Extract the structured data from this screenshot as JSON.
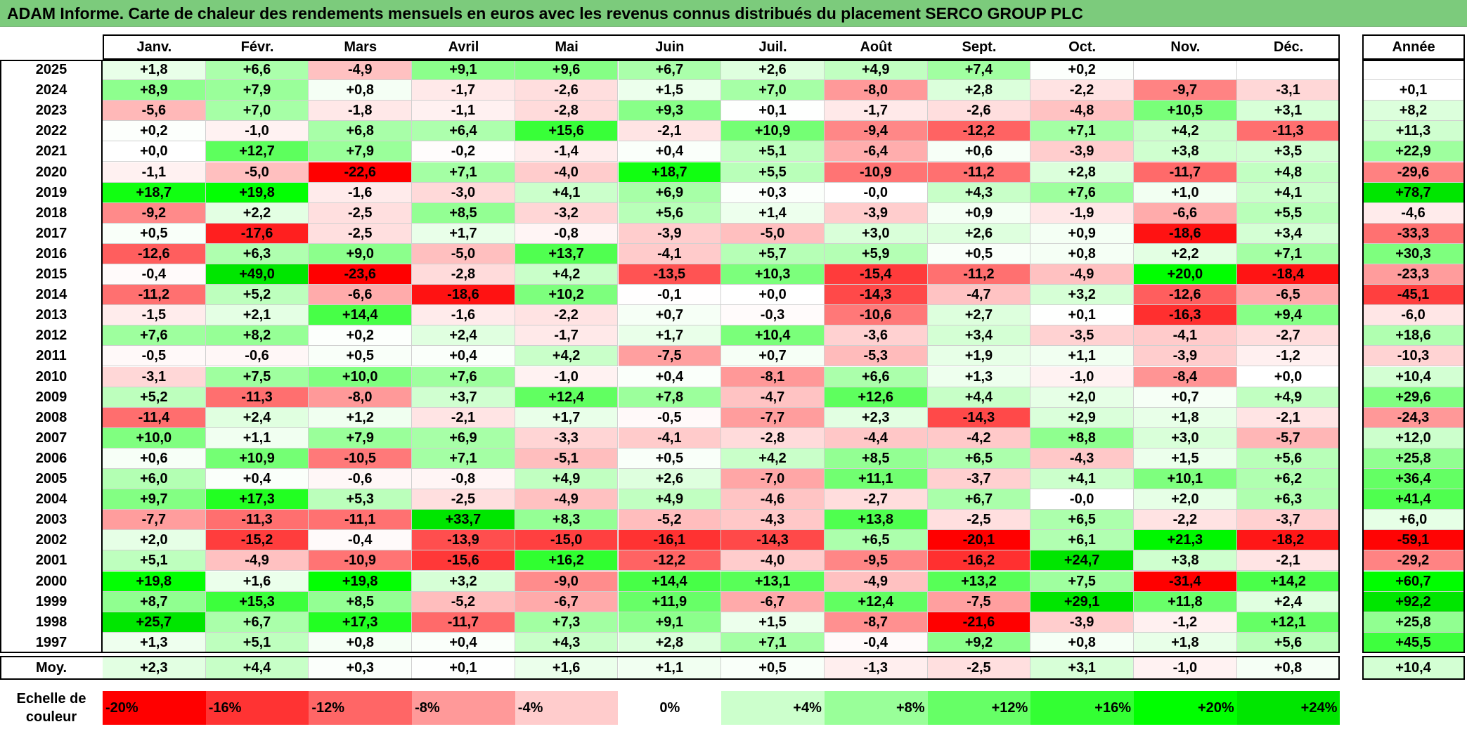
{
  "title": "ADAM Informe. Carte de chaleur des rendements mensuels en euros avec les revenus connus distribués du placement SERCO GROUP PLC",
  "chart_data": {
    "type": "heatmap",
    "title": "ADAM Informe. Carte de chaleur des rendements mensuels en euros avec les revenus connus distribués du placement SERCO GROUP PLC",
    "months": [
      "Janv.",
      "Févr.",
      "Mars",
      "Avril",
      "Mai",
      "Juin",
      "Juil.",
      "Août",
      "Sept.",
      "Oct.",
      "Nov.",
      "Déc."
    ],
    "annual_header": "Année",
    "rows": [
      {
        "year": "2025",
        "values": [
          "+1,8",
          "+6,6",
          "-4,9",
          "+9,1",
          "+9,6",
          "+6,7",
          "+2,6",
          "+4,9",
          "+7,4",
          "+0,2",
          "",
          ""
        ],
        "annual": ""
      },
      {
        "year": "2024",
        "values": [
          "+8,9",
          "+7,9",
          "+0,8",
          "-1,7",
          "-2,6",
          "+1,5",
          "+7,0",
          "-8,0",
          "+2,8",
          "-2,2",
          "-9,7",
          "-3,1"
        ],
        "annual": "+0,1"
      },
      {
        "year": "2023",
        "values": [
          "-5,6",
          "+7,0",
          "-1,8",
          "-1,1",
          "-2,8",
          "+9,3",
          "+0,1",
          "-1,7",
          "-2,6",
          "-4,8",
          "+10,5",
          "+3,1"
        ],
        "annual": "+8,2"
      },
      {
        "year": "2022",
        "values": [
          "+0,2",
          "-1,0",
          "+6,8",
          "+6,4",
          "+15,6",
          "-2,1",
          "+10,9",
          "-9,4",
          "-12,2",
          "+7,1",
          "+4,2",
          "-11,3"
        ],
        "annual": "+11,3"
      },
      {
        "year": "2021",
        "values": [
          "+0,0",
          "+12,7",
          "+7,9",
          "-0,2",
          "-1,4",
          "+0,4",
          "+5,1",
          "-6,4",
          "+0,6",
          "-3,9",
          "+3,8",
          "+3,5"
        ],
        "annual": "+22,9"
      },
      {
        "year": "2020",
        "values": [
          "-1,1",
          "-5,0",
          "-22,6",
          "+7,1",
          "-4,0",
          "+18,7",
          "+5,5",
          "-10,9",
          "-11,2",
          "+2,8",
          "-11,7",
          "+4,8"
        ],
        "annual": "-29,6"
      },
      {
        "year": "2019",
        "values": [
          "+18,7",
          "+19,8",
          "-1,6",
          "-3,0",
          "+4,1",
          "+6,9",
          "+0,3",
          "-0,0",
          "+4,3",
          "+7,6",
          "+1,0",
          "+4,1"
        ],
        "annual": "+78,7"
      },
      {
        "year": "2018",
        "values": [
          "-9,2",
          "+2,2",
          "-2,5",
          "+8,5",
          "-3,2",
          "+5,6",
          "+1,4",
          "-3,9",
          "+0,9",
          "-1,9",
          "-6,6",
          "+5,5"
        ],
        "annual": "-4,6"
      },
      {
        "year": "2017",
        "values": [
          "+0,5",
          "-17,6",
          "-2,5",
          "+1,7",
          "-0,8",
          "-3,9",
          "-5,0",
          "+3,0",
          "+2,6",
          "+0,9",
          "-18,6",
          "+3,4"
        ],
        "annual": "-33,3"
      },
      {
        "year": "2016",
        "values": [
          "-12,6",
          "+6,3",
          "+9,0",
          "-5,0",
          "+13,7",
          "-4,1",
          "+5,7",
          "+5,9",
          "+0,5",
          "+0,8",
          "+2,2",
          "+7,1"
        ],
        "annual": "+30,3"
      },
      {
        "year": "2015",
        "values": [
          "-0,4",
          "+49,0",
          "-23,6",
          "-2,8",
          "+4,2",
          "-13,5",
          "+10,3",
          "-15,4",
          "-11,2",
          "-4,9",
          "+20,0",
          "-18,4"
        ],
        "annual": "-23,3"
      },
      {
        "year": "2014",
        "values": [
          "-11,2",
          "+5,2",
          "-6,6",
          "-18,6",
          "+10,2",
          "-0,1",
          "+0,0",
          "-14,3",
          "-4,7",
          "+3,2",
          "-12,6",
          "-6,5"
        ],
        "annual": "-45,1"
      },
      {
        "year": "2013",
        "values": [
          "-1,5",
          "+2,1",
          "+14,4",
          "-1,6",
          "-2,2",
          "+0,7",
          "-0,3",
          "-10,6",
          "+2,7",
          "+0,1",
          "-16,3",
          "+9,4"
        ],
        "annual": "-6,0"
      },
      {
        "year": "2012",
        "values": [
          "+7,6",
          "+8,2",
          "+0,2",
          "+2,4",
          "-1,7",
          "+1,7",
          "+10,4",
          "-3,6",
          "+3,4",
          "-3,5",
          "-4,1",
          "-2,7"
        ],
        "annual": "+18,6"
      },
      {
        "year": "2011",
        "values": [
          "-0,5",
          "-0,6",
          "+0,5",
          "+0,4",
          "+4,2",
          "-7,5",
          "+0,7",
          "-5,3",
          "+1,9",
          "+1,1",
          "-3,9",
          "-1,2"
        ],
        "annual": "-10,3"
      },
      {
        "year": "2010",
        "values": [
          "-3,1",
          "+7,5",
          "+10,0",
          "+7,6",
          "-1,0",
          "+0,4",
          "-8,1",
          "+6,6",
          "+1,3",
          "-1,0",
          "-8,4",
          "+0,0"
        ],
        "annual": "+10,4"
      },
      {
        "year": "2009",
        "values": [
          "+5,2",
          "-11,3",
          "-8,0",
          "+3,7",
          "+12,4",
          "+7,8",
          "-4,7",
          "+12,6",
          "+4,4",
          "+2,0",
          "+0,7",
          "+4,9"
        ],
        "annual": "+29,6"
      },
      {
        "year": "2008",
        "values": [
          "-11,4",
          "+2,4",
          "+1,2",
          "-2,1",
          "+1,7",
          "-0,5",
          "-7,7",
          "+2,3",
          "-14,3",
          "+2,9",
          "+1,8",
          "-2,1"
        ],
        "annual": "-24,3"
      },
      {
        "year": "2007",
        "values": [
          "+10,0",
          "+1,1",
          "+7,9",
          "+6,9",
          "-3,3",
          "-4,1",
          "-2,8",
          "-4,4",
          "-4,2",
          "+8,8",
          "+3,0",
          "-5,7"
        ],
        "annual": "+12,0"
      },
      {
        "year": "2006",
        "values": [
          "+0,6",
          "+10,9",
          "-10,5",
          "+7,1",
          "-5,1",
          "+0,5",
          "+4,2",
          "+8,5",
          "+6,5",
          "-4,3",
          "+1,5",
          "+5,6"
        ],
        "annual": "+25,8"
      },
      {
        "year": "2005",
        "values": [
          "+6,0",
          "+0,4",
          "-0,6",
          "-0,8",
          "+4,9",
          "+2,6",
          "-7,0",
          "+11,1",
          "-3,7",
          "+4,1",
          "+10,1",
          "+6,2"
        ],
        "annual": "+36,4"
      },
      {
        "year": "2004",
        "values": [
          "+9,7",
          "+17,3",
          "+5,3",
          "-2,5",
          "-4,9",
          "+4,9",
          "-4,6",
          "-2,7",
          "+6,7",
          "-0,0",
          "+2,0",
          "+6,3"
        ],
        "annual": "+41,4"
      },
      {
        "year": "2003",
        "values": [
          "-7,7",
          "-11,3",
          "-11,1",
          "+33,7",
          "+8,3",
          "-5,2",
          "-4,3",
          "+13,8",
          "-2,5",
          "+6,5",
          "-2,2",
          "-3,7"
        ],
        "annual": "+6,0"
      },
      {
        "year": "2002",
        "values": [
          "+2,0",
          "-15,2",
          "-0,4",
          "-13,9",
          "-15,0",
          "-16,1",
          "-14,3",
          "+6,5",
          "-20,1",
          "+6,1",
          "+21,3",
          "-18,2"
        ],
        "annual": "-59,1"
      },
      {
        "year": "2001",
        "values": [
          "+5,1",
          "-4,9",
          "-10,9",
          "-15,6",
          "+16,2",
          "-12,2",
          "-4,0",
          "-9,5",
          "-16,2",
          "+24,7",
          "+3,8",
          "-2,1"
        ],
        "annual": "-29,2"
      },
      {
        "year": "2000",
        "values": [
          "+19,8",
          "+1,6",
          "+19,8",
          "+3,2",
          "-9,0",
          "+14,4",
          "+13,1",
          "-4,9",
          "+13,2",
          "+7,5",
          "-31,4",
          "+14,2"
        ],
        "annual": "+60,7"
      },
      {
        "year": "1999",
        "values": [
          "+8,7",
          "+15,3",
          "+8,5",
          "-5,2",
          "-6,7",
          "+11,9",
          "-6,7",
          "+12,4",
          "-7,5",
          "+29,1",
          "+11,8",
          "+2,4"
        ],
        "annual": "+92,2"
      },
      {
        "year": "1998",
        "values": [
          "+25,7",
          "+6,7",
          "+17,3",
          "-11,7",
          "+7,3",
          "+9,1",
          "+1,5",
          "-8,7",
          "-21,6",
          "-3,9",
          "-1,2",
          "+12,1"
        ],
        "annual": "+25,8"
      },
      {
        "year": "1997",
        "values": [
          "+1,3",
          "+5,1",
          "+0,8",
          "+0,4",
          "+4,3",
          "+2,8",
          "+7,1",
          "-0,4",
          "+9,2",
          "+0,8",
          "+1,8",
          "+5,6"
        ],
        "annual": "+45,5"
      }
    ],
    "average": {
      "label": "Moy.",
      "values": [
        "+2,3",
        "+4,4",
        "+0,3",
        "+0,1",
        "+1,6",
        "+1,1",
        "+0,5",
        "-1,3",
        "-2,5",
        "+3,1",
        "-1,0",
        "+0,8"
      ],
      "annual": "+10,4"
    },
    "scale": {
      "label_line1": "Echelle de",
      "label_line2": "couleur",
      "steps": [
        {
          "label": "-20%",
          "value": -20,
          "color": "#ff0000"
        },
        {
          "label": "-16%",
          "value": -16,
          "color": "#ff3333"
        },
        {
          "label": "-12%",
          "value": -12,
          "color": "#ff6666"
        },
        {
          "label": "-8%",
          "value": -8,
          "color": "#ff9999"
        },
        {
          "label": "-4%",
          "value": -4,
          "color": "#ffcccc"
        },
        {
          "label": "0%",
          "value": 0,
          "color": "#ffffff"
        },
        {
          "label": "+4%",
          "value": 4,
          "color": "#ccffcc"
        },
        {
          "label": "+8%",
          "value": 8,
          "color": "#99ff99"
        },
        {
          "label": "+12%",
          "value": 12,
          "color": "#66ff66"
        },
        {
          "label": "+16%",
          "value": 16,
          "color": "#33ff33"
        },
        {
          "label": "+20%",
          "value": 20,
          "color": "#00ff00"
        },
        {
          "label": "+24%",
          "value": 24,
          "color": "#00e600"
        }
      ]
    },
    "colors": {
      "title_bar": "#7ccb7c",
      "max_red": "#ff0000",
      "max_green": "#00e600"
    }
  }
}
